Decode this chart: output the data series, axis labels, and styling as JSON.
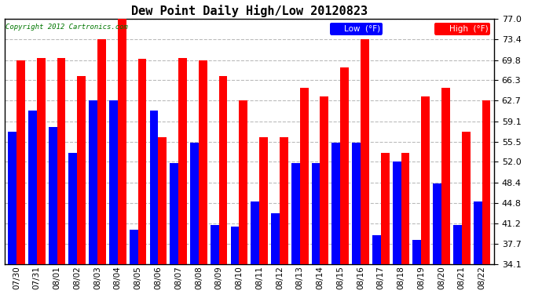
{
  "title": "Dew Point Daily High/Low 20120823",
  "copyright": "Copyright 2012 Cartronics.com",
  "dates": [
    "07/30",
    "07/31",
    "08/01",
    "08/02",
    "08/03",
    "08/04",
    "08/05",
    "08/06",
    "08/07",
    "08/08",
    "08/09",
    "08/10",
    "08/11",
    "08/12",
    "08/13",
    "08/14",
    "08/15",
    "08/16",
    "08/17",
    "08/18",
    "08/19",
    "08/20",
    "08/21",
    "08/22"
  ],
  "high": [
    69.8,
    70.2,
    70.2,
    67.0,
    73.4,
    77.0,
    70.0,
    56.3,
    70.2,
    69.8,
    67.0,
    62.7,
    56.3,
    56.3,
    64.9,
    63.5,
    68.5,
    73.4,
    53.6,
    53.6,
    63.5,
    64.9,
    57.2,
    62.7
  ],
  "low": [
    57.2,
    61.0,
    58.1,
    53.6,
    62.7,
    62.7,
    40.1,
    61.0,
    51.8,
    55.4,
    41.0,
    40.6,
    45.0,
    43.0,
    51.8,
    51.8,
    55.4,
    55.4,
    39.2,
    52.0,
    38.3,
    48.2,
    41.0,
    45.0
  ],
  "high_color": "#ff0000",
  "low_color": "#0000ff",
  "bg_color": "#ffffff",
  "plot_bg_color": "#ffffff",
  "grid_color": "#bbbbbb",
  "yticks": [
    34.1,
    37.7,
    41.2,
    44.8,
    48.4,
    52.0,
    55.5,
    59.1,
    62.7,
    66.3,
    69.8,
    73.4,
    77.0
  ],
  "ymin": 34.1,
  "ymax": 77.0,
  "bar_width": 0.42
}
